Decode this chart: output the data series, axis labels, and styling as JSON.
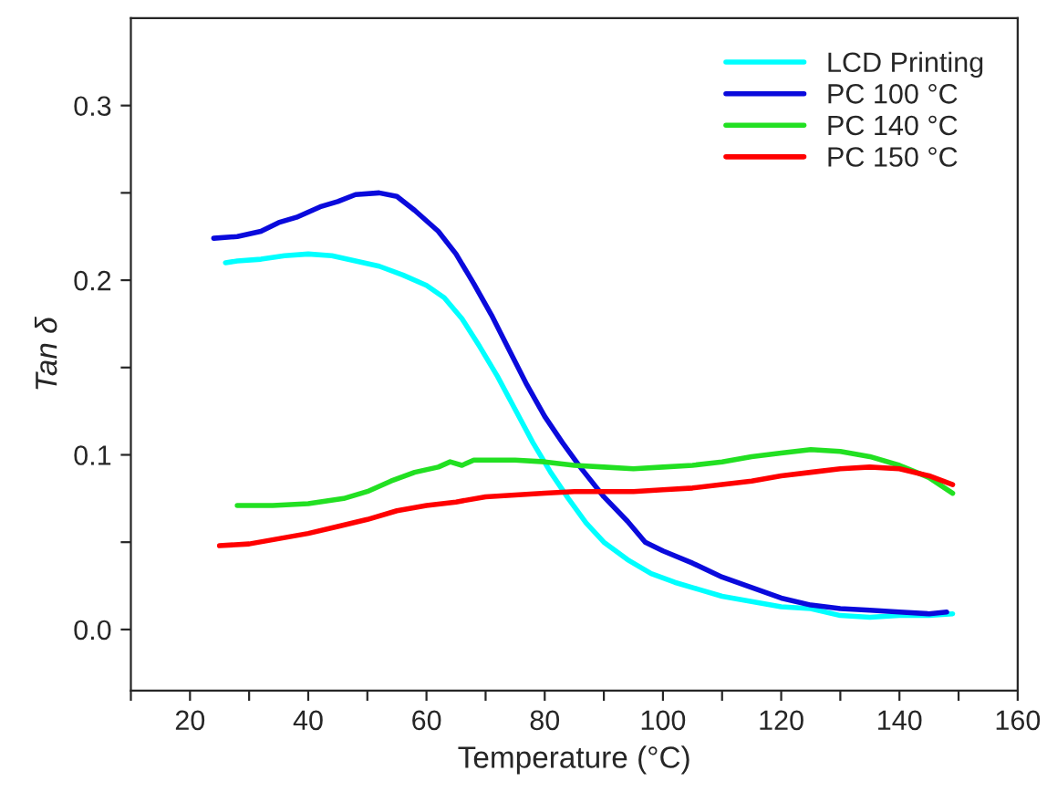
{
  "chart_data": {
    "type": "line",
    "xlabel": "Temperature (°C)",
    "ylabel": "Tan δ",
    "xlim": [
      10,
      160
    ],
    "xticks": [
      {
        "value": 10,
        "label": null
      },
      20,
      {
        "value": 30,
        "label": null
      },
      40,
      {
        "value": 50,
        "label": null
      },
      60,
      {
        "value": 70,
        "label": null
      },
      80,
      {
        "value": 90,
        "label": null
      },
      100,
      {
        "value": 110,
        "label": null
      },
      120,
      {
        "value": 130,
        "label": null
      },
      140,
      {
        "value": 150,
        "label": null
      },
      160
    ],
    "ylim": [
      -0.035,
      0.35
    ],
    "yticks": [
      {
        "value": 0.0,
        "label": "0.0"
      },
      {
        "value": 0.05,
        "label": null
      },
      {
        "value": 0.1,
        "label": "0.1"
      },
      {
        "value": 0.15,
        "label": null
      },
      {
        "value": 0.2,
        "label": "0.2"
      },
      {
        "value": 0.25,
        "label": null
      },
      {
        "value": 0.3,
        "label": "0.3"
      }
    ],
    "grid": false,
    "legend": "top right",
    "marker": "none",
    "line_style": "solid",
    "series": [
      {
        "name": "LCD Printing",
        "color": "#00ffff",
        "x": [
          26,
          28,
          32,
          36,
          40,
          44,
          48,
          52,
          56,
          60,
          63,
          66,
          69,
          72,
          75,
          78,
          81,
          84,
          87,
          90,
          94,
          98,
          102,
          106,
          110,
          115,
          120,
          125,
          130,
          135,
          140,
          145,
          149
        ],
        "values": [
          0.21,
          0.211,
          0.212,
          0.214,
          0.215,
          0.214,
          0.211,
          0.208,
          0.203,
          0.197,
          0.19,
          0.178,
          0.162,
          0.145,
          0.126,
          0.107,
          0.09,
          0.075,
          0.061,
          0.05,
          0.04,
          0.032,
          0.027,
          0.023,
          0.019,
          0.016,
          0.013,
          0.012,
          0.008,
          0.007,
          0.008,
          0.008,
          0.009
        ]
      },
      {
        "name": "PC 100 °C",
        "color": "#0a0adc",
        "x": [
          24,
          28,
          32,
          35,
          38,
          42,
          45,
          48,
          52,
          55,
          58,
          62,
          65,
          68,
          71,
          74,
          77,
          80,
          83,
          86,
          90,
          94,
          97,
          100,
          105,
          110,
          115,
          120,
          125,
          130,
          135,
          140,
          145,
          148
        ],
        "values": [
          0.224,
          0.225,
          0.228,
          0.233,
          0.236,
          0.242,
          0.245,
          0.249,
          0.25,
          0.248,
          0.24,
          0.228,
          0.215,
          0.198,
          0.18,
          0.16,
          0.14,
          0.122,
          0.107,
          0.093,
          0.076,
          0.062,
          0.05,
          0.045,
          0.038,
          0.03,
          0.024,
          0.018,
          0.014,
          0.012,
          0.011,
          0.01,
          0.009,
          0.01
        ]
      },
      {
        "name": "PC 140 °C",
        "color": "#22e022",
        "x": [
          28,
          34,
          40,
          46,
          50,
          54,
          58,
          62,
          64,
          66,
          68,
          75,
          80,
          85,
          90,
          95,
          100,
          105,
          110,
          115,
          120,
          125,
          130,
          135,
          140,
          145,
          149
        ],
        "values": [
          0.071,
          0.071,
          0.072,
          0.075,
          0.079,
          0.085,
          0.09,
          0.093,
          0.096,
          0.094,
          0.097,
          0.097,
          0.096,
          0.094,
          0.093,
          0.092,
          0.093,
          0.094,
          0.096,
          0.099,
          0.101,
          0.103,
          0.102,
          0.099,
          0.094,
          0.087,
          0.078
        ]
      },
      {
        "name": "PC 150 °C",
        "color": "#ff0000",
        "x": [
          25,
          30,
          35,
          40,
          45,
          50,
          55,
          60,
          65,
          70,
          75,
          80,
          85,
          90,
          95,
          100,
          105,
          110,
          115,
          120,
          125,
          130,
          135,
          140,
          145,
          149
        ],
        "values": [
          0.048,
          0.049,
          0.052,
          0.055,
          0.059,
          0.063,
          0.068,
          0.071,
          0.073,
          0.076,
          0.077,
          0.078,
          0.079,
          0.079,
          0.079,
          0.08,
          0.081,
          0.083,
          0.085,
          0.088,
          0.09,
          0.092,
          0.093,
          0.092,
          0.088,
          0.083
        ]
      }
    ]
  }
}
